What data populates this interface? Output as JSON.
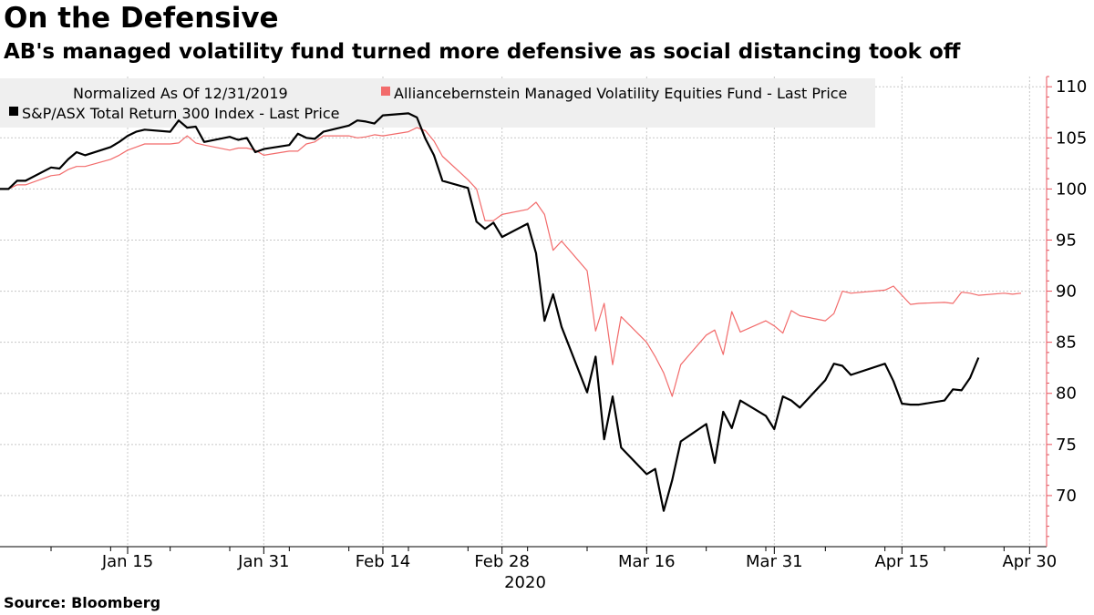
{
  "title": "On the Defensive",
  "subtitle": "AB's managed volatility fund turned more defensive as social distancing took off",
  "source": "Source: Bloomberg",
  "colors": {
    "fund": "#f26b6b",
    "index": "#000000",
    "index_overlap": "#6f6f6f",
    "grid": "#c8c8c8",
    "y_axis": "#e8505b",
    "legend_bg": "#efefef"
  },
  "chart_data": {
    "type": "line",
    "xlabel": "2020",
    "ylabel": "",
    "ylim": [
      65,
      111
    ],
    "yticks": [
      70,
      75,
      80,
      85,
      90,
      95,
      100,
      105,
      110
    ],
    "y_axis_side": "right",
    "grid": true,
    "legend_placement": "top-left",
    "legend_title": "Normalized As Of 12/31/2019",
    "x_ticks": [
      {
        "date": "2020-01-15",
        "label": "Jan 15"
      },
      {
        "date": "2020-01-31",
        "label": "Jan 31"
      },
      {
        "date": "2020-02-14",
        "label": "Feb 14"
      },
      {
        "date": "2020-02-28",
        "label": "Feb 28"
      },
      {
        "date": "2020-03-16",
        "label": "Mar 16"
      },
      {
        "date": "2020-03-31",
        "label": "Mar 31"
      },
      {
        "date": "2020-04-15",
        "label": "Apr 15"
      },
      {
        "date": "2020-04-30",
        "label": "Apr 30"
      }
    ],
    "x_range": [
      "2019-12-31",
      "2020-05-02"
    ],
    "series": [
      {
        "name": "Alliancebernstein Managed Volatility Equities Fund - Last Price",
        "color": "#f26b6b",
        "points": [
          [
            "2019-12-31",
            100.0
          ],
          [
            "2020-01-01",
            100.0
          ],
          [
            "2020-01-02",
            100.4
          ],
          [
            "2020-01-03",
            100.4
          ],
          [
            "2020-01-06",
            101.3
          ],
          [
            "2020-01-07",
            101.4
          ],
          [
            "2020-01-08",
            101.9
          ],
          [
            "2020-01-09",
            102.2
          ],
          [
            "2020-01-10",
            102.2
          ],
          [
            "2020-01-13",
            102.9
          ],
          [
            "2020-01-14",
            103.3
          ],
          [
            "2020-01-15",
            103.8
          ],
          [
            "2020-01-16",
            104.1
          ],
          [
            "2020-01-17",
            104.4
          ],
          [
            "2020-01-20",
            104.4
          ],
          [
            "2020-01-21",
            104.5
          ],
          [
            "2020-01-22",
            105.2
          ],
          [
            "2020-01-23",
            104.5
          ],
          [
            "2020-01-24",
            104.3
          ],
          [
            "2020-01-27",
            103.8
          ],
          [
            "2020-01-28",
            104.0
          ],
          [
            "2020-01-29",
            104.0
          ],
          [
            "2020-01-30",
            103.8
          ],
          [
            "2020-01-31",
            103.3
          ],
          [
            "2020-02-03",
            103.7
          ],
          [
            "2020-02-04",
            103.7
          ],
          [
            "2020-02-05",
            104.4
          ],
          [
            "2020-02-06",
            104.6
          ],
          [
            "2020-02-07",
            105.2
          ],
          [
            "2020-02-10",
            105.2
          ],
          [
            "2020-02-11",
            105.0
          ],
          [
            "2020-02-12",
            105.1
          ],
          [
            "2020-02-13",
            105.3
          ],
          [
            "2020-02-14",
            105.2
          ],
          [
            "2020-02-17",
            105.6
          ],
          [
            "2020-02-18",
            106.0
          ],
          [
            "2020-02-19",
            105.7
          ],
          [
            "2020-02-20",
            104.7
          ],
          [
            "2020-02-21",
            103.2
          ],
          [
            "2020-02-24",
            100.9
          ],
          [
            "2020-02-25",
            100.0
          ],
          [
            "2020-02-26",
            96.9
          ],
          [
            "2020-02-27",
            96.9
          ],
          [
            "2020-02-28",
            97.5
          ],
          [
            "2020-03-02",
            98.0
          ],
          [
            "2020-03-03",
            98.7
          ],
          [
            "2020-03-04",
            97.5
          ],
          [
            "2020-03-05",
            94.0
          ],
          [
            "2020-03-06",
            94.9
          ],
          [
            "2020-03-09",
            92.0
          ],
          [
            "2020-03-10",
            86.1
          ],
          [
            "2020-03-11",
            88.8
          ],
          [
            "2020-03-12",
            82.8
          ],
          [
            "2020-03-13",
            87.5
          ],
          [
            "2020-03-16",
            85.0
          ],
          [
            "2020-03-17",
            83.6
          ],
          [
            "2020-03-18",
            82.0
          ],
          [
            "2020-03-19",
            79.7
          ],
          [
            "2020-03-20",
            82.8
          ],
          [
            "2020-03-23",
            85.7
          ],
          [
            "2020-03-24",
            86.2
          ],
          [
            "2020-03-25",
            83.8
          ],
          [
            "2020-03-26",
            88.0
          ],
          [
            "2020-03-27",
            86.0
          ],
          [
            "2020-03-30",
            87.1
          ],
          [
            "2020-03-31",
            86.6
          ],
          [
            "2020-04-01",
            85.9
          ],
          [
            "2020-04-02",
            88.1
          ],
          [
            "2020-04-03",
            87.6
          ],
          [
            "2020-04-06",
            87.1
          ],
          [
            "2020-04-07",
            87.8
          ],
          [
            "2020-04-08",
            90.0
          ],
          [
            "2020-04-09",
            89.8
          ],
          [
            "2020-04-13",
            90.1
          ],
          [
            "2020-04-14",
            90.5
          ],
          [
            "2020-04-15",
            89.6
          ],
          [
            "2020-04-16",
            88.7
          ],
          [
            "2020-04-17",
            88.8
          ],
          [
            "2020-04-20",
            88.9
          ],
          [
            "2020-04-21",
            88.8
          ],
          [
            "2020-04-22",
            89.9
          ],
          [
            "2020-04-23",
            89.8
          ],
          [
            "2020-04-24",
            89.6
          ],
          [
            "2020-04-27",
            89.8
          ],
          [
            "2020-04-28",
            89.7
          ],
          [
            "2020-04-29",
            89.8
          ]
        ]
      },
      {
        "name": "S&P/ASX Total Return 300 Index - Last Price",
        "color": "#000000",
        "points": [
          [
            "2019-12-31",
            100.0
          ],
          [
            "2020-01-01",
            100.0
          ],
          [
            "2020-01-02",
            100.8
          ],
          [
            "2020-01-03",
            100.8
          ],
          [
            "2020-01-06",
            102.1
          ],
          [
            "2020-01-07",
            102.0
          ],
          [
            "2020-01-08",
            102.9
          ],
          [
            "2020-01-09",
            103.6
          ],
          [
            "2020-01-10",
            103.3
          ],
          [
            "2020-01-13",
            104.1
          ],
          [
            "2020-01-14",
            104.6
          ],
          [
            "2020-01-15",
            105.2
          ],
          [
            "2020-01-16",
            105.6
          ],
          [
            "2020-01-17",
            105.8
          ],
          [
            "2020-01-20",
            105.6
          ],
          [
            "2020-01-21",
            106.7
          ],
          [
            "2020-01-22",
            106.0
          ],
          [
            "2020-01-23",
            106.1
          ],
          [
            "2020-01-24",
            104.6
          ],
          [
            "2020-01-27",
            105.1
          ],
          [
            "2020-01-28",
            104.8
          ],
          [
            "2020-01-29",
            105.0
          ],
          [
            "2020-01-30",
            103.6
          ],
          [
            "2020-01-31",
            103.9
          ],
          [
            "2020-02-03",
            104.3
          ],
          [
            "2020-02-04",
            105.4
          ],
          [
            "2020-02-05",
            105.0
          ],
          [
            "2020-02-06",
            104.9
          ],
          [
            "2020-02-07",
            105.6
          ],
          [
            "2020-02-10",
            106.2
          ],
          [
            "2020-02-11",
            106.7
          ],
          [
            "2020-02-12",
            106.6
          ],
          [
            "2020-02-13",
            106.4
          ],
          [
            "2020-02-14",
            107.2
          ],
          [
            "2020-02-17",
            107.4
          ],
          [
            "2020-02-18",
            107.0
          ],
          [
            "2020-02-19",
            104.9
          ],
          [
            "2020-02-20",
            103.3
          ],
          [
            "2020-02-21",
            100.8
          ],
          [
            "2020-02-24",
            100.1
          ],
          [
            "2020-02-25",
            96.8
          ],
          [
            "2020-02-26",
            96.1
          ],
          [
            "2020-02-27",
            96.7
          ],
          [
            "2020-02-28",
            95.3
          ],
          [
            "2020-03-02",
            96.6
          ],
          [
            "2020-03-03",
            93.7
          ],
          [
            "2020-03-04",
            87.1
          ],
          [
            "2020-03-05",
            89.7
          ],
          [
            "2020-03-06",
            86.5
          ],
          [
            "2020-03-09",
            80.1
          ],
          [
            "2020-03-10",
            83.6
          ],
          [
            "2020-03-11",
            75.5
          ],
          [
            "2020-03-12",
            79.7
          ],
          [
            "2020-03-13",
            74.7
          ],
          [
            "2020-03-16",
            72.1
          ],
          [
            "2020-03-17",
            72.6
          ],
          [
            "2020-03-18",
            68.5
          ],
          [
            "2020-03-19",
            71.5
          ],
          [
            "2020-03-20",
            75.3
          ],
          [
            "2020-03-23",
            77.0
          ],
          [
            "2020-03-24",
            73.2
          ],
          [
            "2020-03-25",
            78.2
          ],
          [
            "2020-03-26",
            76.6
          ],
          [
            "2020-03-27",
            79.3
          ],
          [
            "2020-03-30",
            77.8
          ],
          [
            "2020-03-31",
            76.5
          ],
          [
            "2020-04-01",
            79.7
          ],
          [
            "2020-04-02",
            79.3
          ],
          [
            "2020-04-03",
            78.6
          ],
          [
            "2020-04-06",
            81.3
          ],
          [
            "2020-04-07",
            82.9
          ],
          [
            "2020-04-08",
            82.7
          ],
          [
            "2020-04-09",
            81.8
          ],
          [
            "2020-04-13",
            82.9
          ],
          [
            "2020-04-14",
            81.2
          ],
          [
            "2020-04-15",
            79.0
          ],
          [
            "2020-04-16",
            78.9
          ],
          [
            "2020-04-17",
            78.9
          ],
          [
            "2020-04-20",
            79.3
          ],
          [
            "2020-04-21",
            80.4
          ],
          [
            "2020-04-22",
            80.3
          ],
          [
            "2020-04-23",
            81.5
          ],
          [
            "2020-04-24",
            83.5
          ]
        ]
      }
    ]
  }
}
